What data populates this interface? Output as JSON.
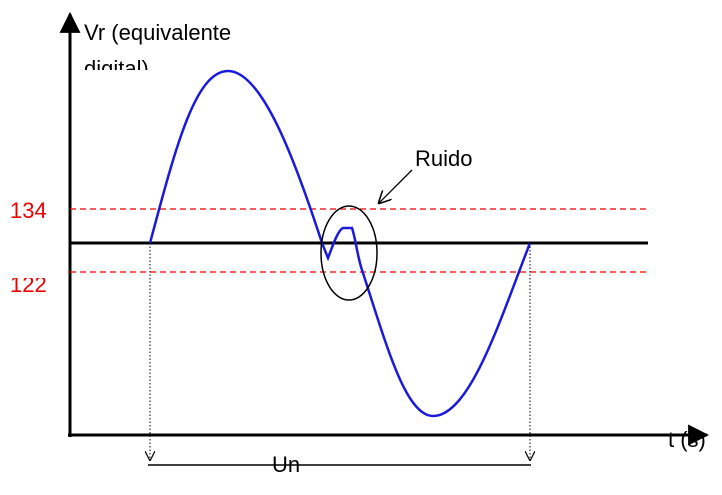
{
  "y_axis": {
    "label_lines": [
      "Vr (equivalente",
      "digital)"
    ]
  },
  "x_axis": {
    "label": "t (s)"
  },
  "thresholds": {
    "upper": "134",
    "lower": "122"
  },
  "annotation": "Ruido",
  "period": "Un"
}
